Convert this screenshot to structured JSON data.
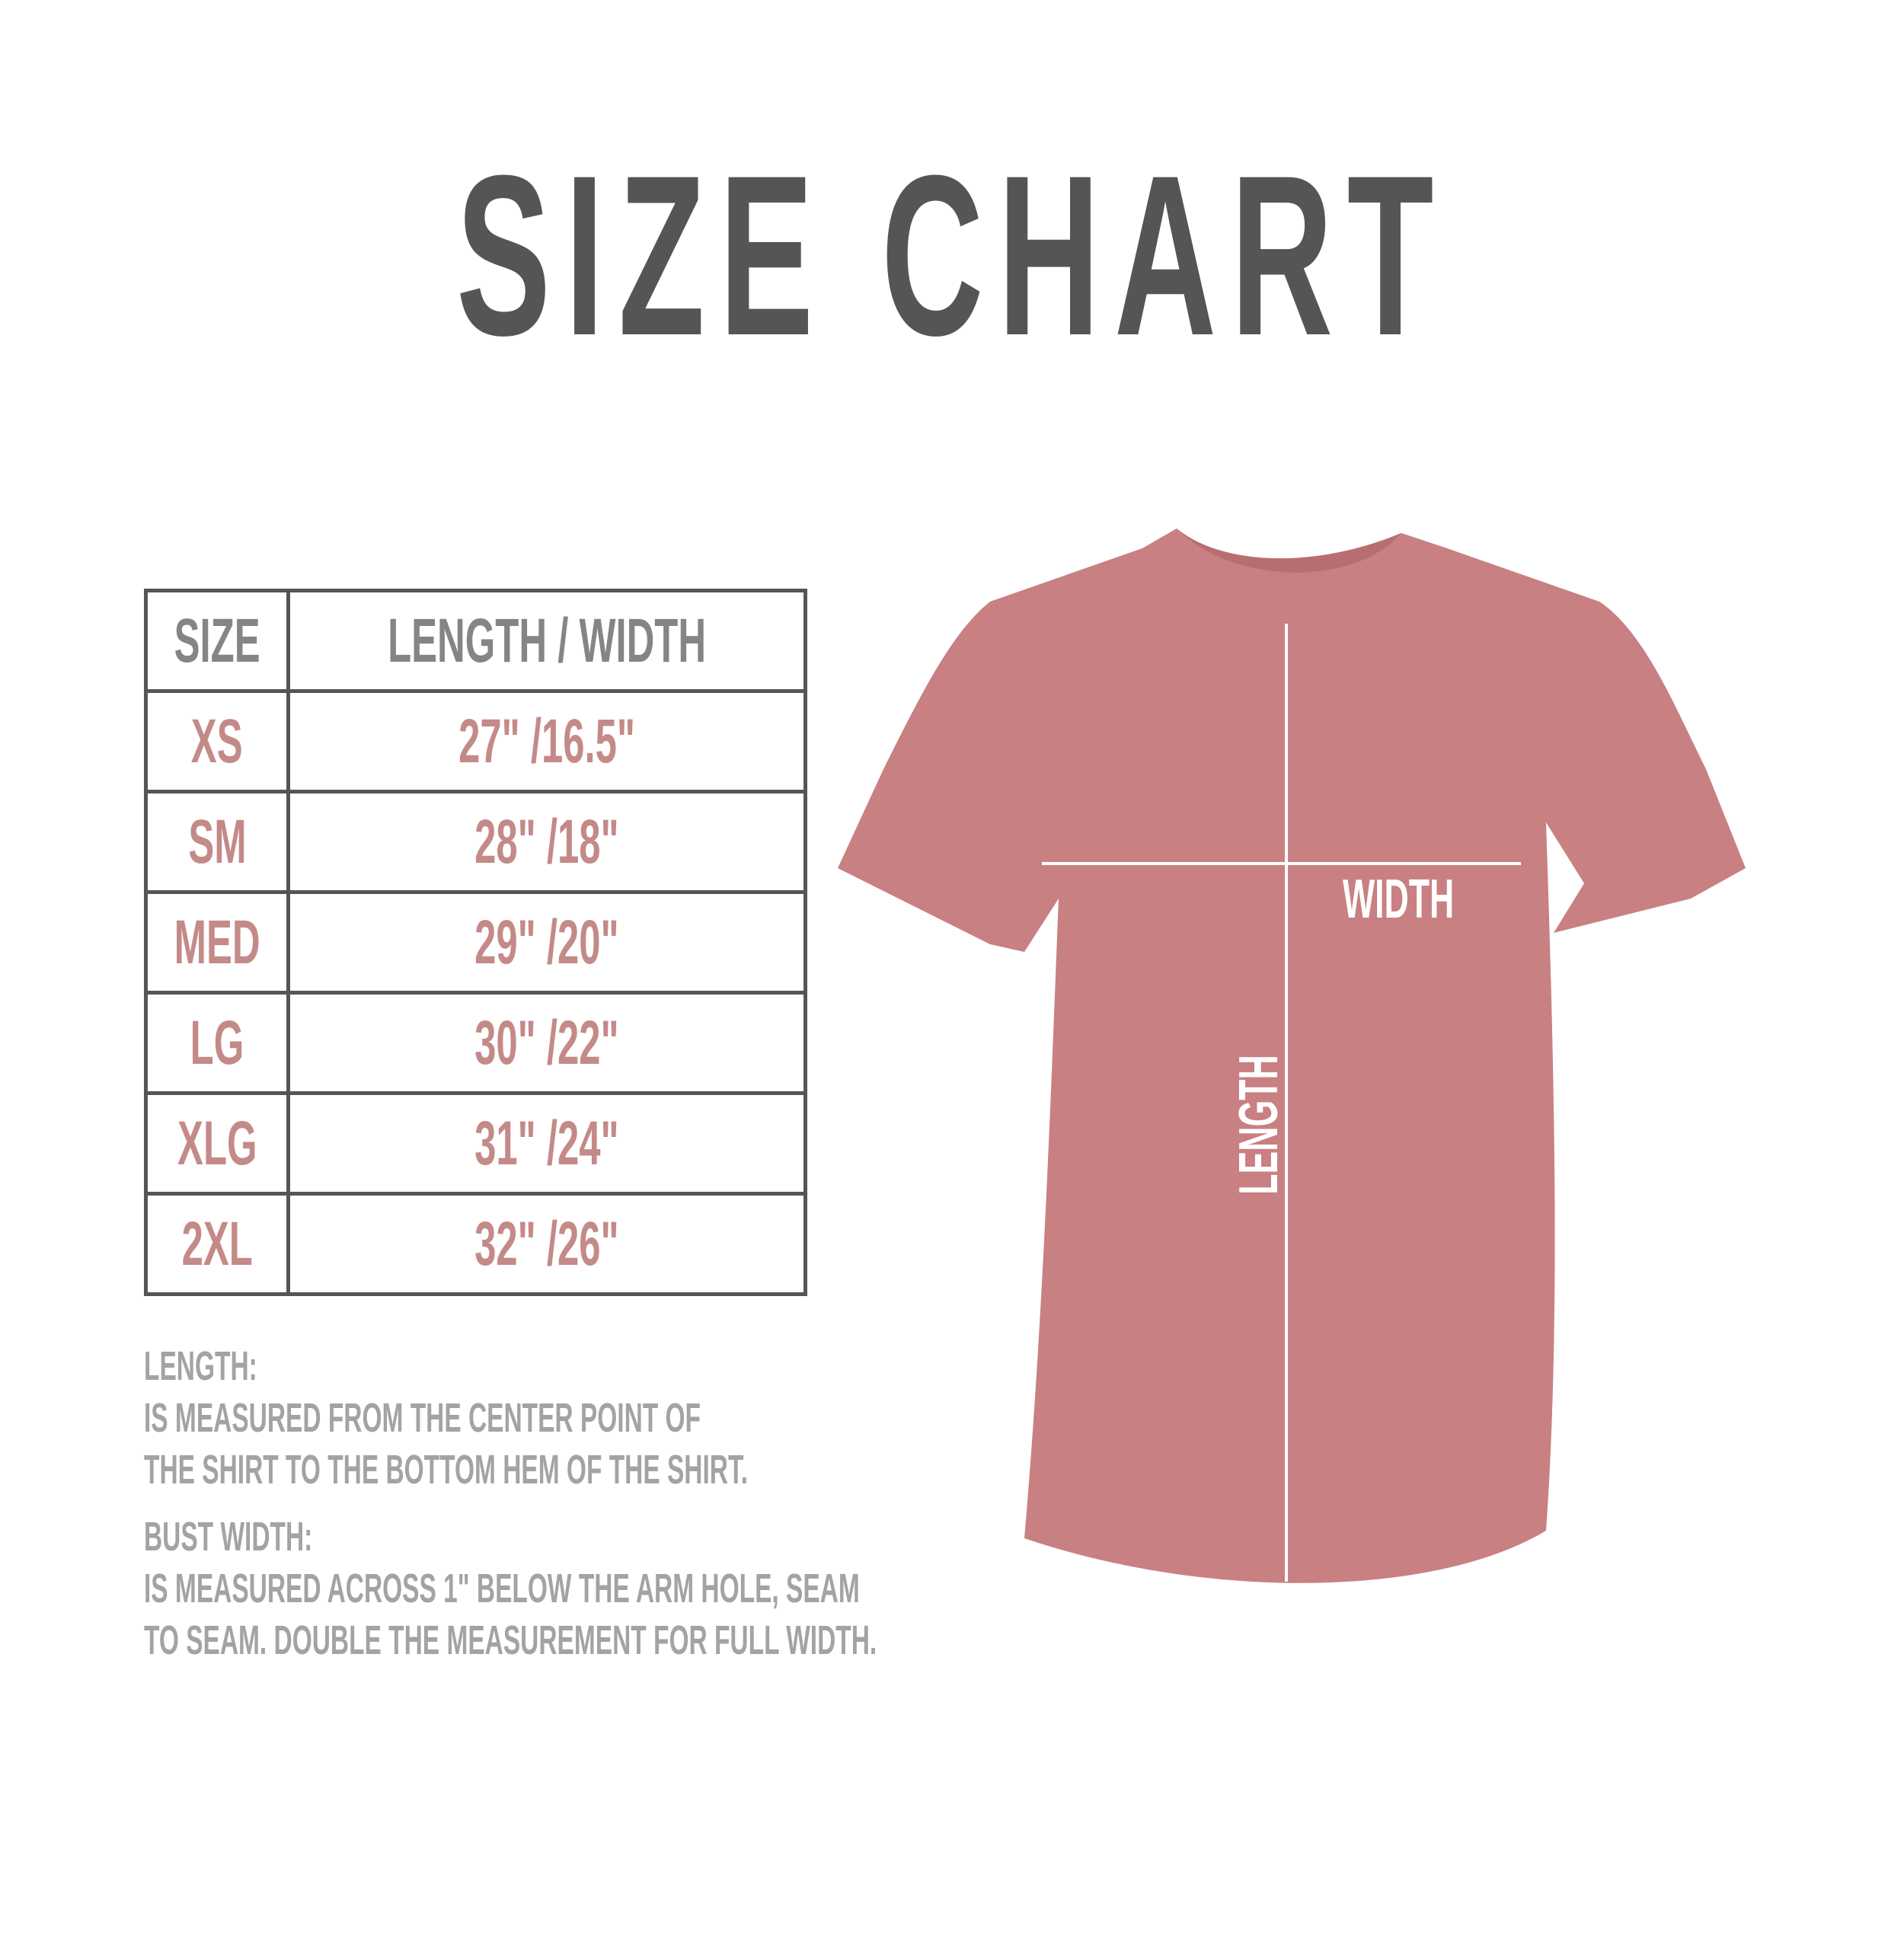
{
  "title": "SIZE CHART",
  "table": {
    "headers": [
      "SIZE",
      "LENGTH / WIDTH"
    ],
    "rows": [
      {
        "size": "XS",
        "measure": "27\" /16.5\""
      },
      {
        "size": "SM",
        "measure": "28\" /18\""
      },
      {
        "size": "MED",
        "measure": "29\" /20\""
      },
      {
        "size": "LG",
        "measure": "30\" /22\""
      },
      {
        "size": "XLG",
        "measure": "31\" /24\""
      },
      {
        "size": "2XL",
        "measure": "32\" /26\""
      }
    ]
  },
  "notes": {
    "length_heading": "LENGTH:",
    "length_lines": [
      "IS MEASURED FROM THE CENTER POINT OF",
      "THE SHIRT TO THE BOTTOM HEM OF THE SHIRT."
    ],
    "width_heading": "BUST WIDTH:",
    "width_lines": [
      "IS MEASURED ACROSS  1\" BELOW THE ARM HOLE, SEAM",
      "TO SEAM. DOUBLE THE MEASUREMENT FOR FULL WIDTH."
    ]
  },
  "diagram": {
    "width_label": "WIDTH",
    "length_label": "LENGTH",
    "shirt_color": "#c98082"
  },
  "colors": {
    "title": "#555555",
    "header_text": "#858585",
    "value_text": "#c48a88",
    "notes_text": "#a3a3a3",
    "border": "#555555"
  }
}
